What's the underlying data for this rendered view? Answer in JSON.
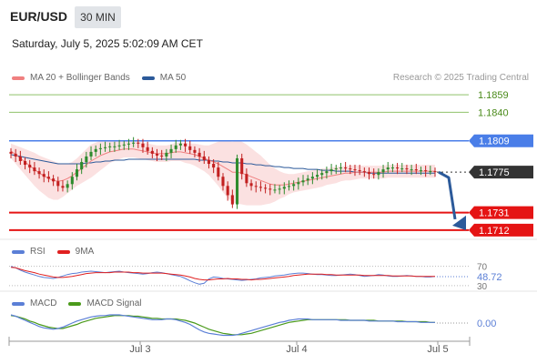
{
  "header": {
    "pair": "EUR/USD",
    "timeframe": "30 MIN",
    "datetime": "Saturday, July 5, 2025 5:02:09 AM CET"
  },
  "main_legend": [
    {
      "label": "MA 20 + Bollinger Bands",
      "color": "#f08080"
    },
    {
      "label": "MA 50",
      "color": "#2c5a9a"
    }
  ],
  "watermark": "Research © 2025 Trading Central",
  "rsi_legend": [
    {
      "label": "RSI",
      "color": "#5b7fd6"
    },
    {
      "label": "9MA",
      "color": "#e02020"
    }
  ],
  "macd_legend": [
    {
      "label": "MACD",
      "color": "#5b7fd6"
    },
    {
      "label": "MACD Signal",
      "color": "#4a9a1a"
    }
  ],
  "colors": {
    "resistance_green": "#8fc26a",
    "pivot_blue": "#4a7ee8",
    "support_red": "#e51414",
    "current_price": "#333333",
    "forecast_arrow": "#2c5a9a",
    "bollinger_fill": "#fbdede",
    "candle_up": "#2e8b2e",
    "candle_down": "#c22020"
  },
  "chart_data": [
    {
      "type": "line",
      "panel": "price",
      "title": "EUR/USD 30 MIN",
      "x_tick_labels": [
        "Jul 3",
        "Jul 4",
        "Jul 5"
      ],
      "ylim": [
        1.1705,
        1.187
      ],
      "levels": [
        {
          "kind": "resistance",
          "value": 1.1859,
          "label": "1.1859"
        },
        {
          "kind": "resistance",
          "value": 1.184,
          "label": "1.1840"
        },
        {
          "kind": "pivot",
          "value": 1.1809,
          "label": "1.1809"
        },
        {
          "kind": "current",
          "value": 1.1775,
          "label": "1.1775"
        },
        {
          "kind": "support",
          "value": 1.1731,
          "label": "1.1731"
        },
        {
          "kind": "support",
          "value": 1.1712,
          "label": "1.1712"
        }
      ],
      "close": [
        1.1795,
        1.1792,
        1.1787,
        1.1783,
        1.178,
        1.1776,
        1.1773,
        1.177,
        1.1768,
        1.1765,
        1.176,
        1.1758,
        1.1762,
        1.177,
        1.1778,
        1.1786,
        1.1792,
        1.1797,
        1.18,
        1.1801,
        1.1802,
        1.1803,
        1.1803,
        1.1804,
        1.1805,
        1.1806,
        1.1807,
        1.1806,
        1.1802,
        1.1798,
        1.1795,
        1.1793,
        1.1792,
        1.1796,
        1.18,
        1.1804,
        1.1806,
        1.1803,
        1.1799,
        1.1796,
        1.1792,
        1.1788,
        1.1784,
        1.178,
        1.177,
        1.176,
        1.175,
        1.174,
        1.179,
        1.1773,
        1.1763,
        1.176,
        1.1759,
        1.1758,
        1.1757,
        1.1756,
        1.1756,
        1.1757,
        1.1759,
        1.176,
        1.1762,
        1.1764,
        1.1766,
        1.1768,
        1.177,
        1.1772,
        1.1774,
        1.1776,
        1.1778,
        1.1779,
        1.178,
        1.1779,
        1.1778,
        1.1777,
        1.1776,
        1.1775,
        1.1773,
        1.1772,
        1.1775,
        1.1778,
        1.178,
        1.178,
        1.1779,
        1.1779,
        1.1778,
        1.1778,
        1.1777,
        1.1777,
        1.1776,
        1.1776,
        1.1775
      ],
      "ma20": [
        1.1798,
        1.1794,
        1.179,
        1.1786,
        1.1782,
        1.1778,
        1.1774,
        1.1771,
        1.1768,
        1.1766,
        1.1765,
        1.1766,
        1.1768,
        1.1771,
        1.1775,
        1.1779,
        1.1783,
        1.1787,
        1.179,
        1.1793,
        1.1795,
        1.1797,
        1.1798,
        1.1799,
        1.18,
        1.18,
        1.18,
        1.1799,
        1.1798,
        1.1797,
        1.1796,
        1.1795,
        1.1795,
        1.1795,
        1.1796,
        1.1797,
        1.1797,
        1.1796,
        1.1795,
        1.1794,
        1.1792,
        1.179,
        1.1788,
        1.1786,
        1.1784,
        1.1781,
        1.1778,
        1.1775,
        1.1775,
        1.1774,
        1.1772,
        1.177,
        1.1768,
        1.1766,
        1.1764,
        1.1762,
        1.1761,
        1.1761,
        1.1761,
        1.1762,
        1.1763,
        1.1764,
        1.1765,
        1.1766,
        1.1767,
        1.1768,
        1.1769,
        1.177,
        1.1771,
        1.1772,
        1.1773,
        1.1774,
        1.1774,
        1.1775,
        1.1775,
        1.1775,
        1.1775,
        1.1775,
        1.1775,
        1.1775,
        1.1776,
        1.1776,
        1.1776,
        1.1776,
        1.1776,
        1.1776,
        1.1776,
        1.1776,
        1.1776,
        1.1776,
        1.1776
      ],
      "ma50": [
        1.1794,
        1.1793,
        1.1792,
        1.1791,
        1.179,
        1.1789,
        1.1788,
        1.1787,
        1.1786,
        1.1785,
        1.1784,
        1.1784,
        1.1784,
        1.1784,
        1.1784,
        1.1784,
        1.1785,
        1.1785,
        1.1786,
        1.1786,
        1.1787,
        1.1787,
        1.1788,
        1.1788,
        1.1788,
        1.1789,
        1.1789,
        1.1789,
        1.1789,
        1.1789,
        1.1789,
        1.1789,
        1.1789,
        1.1789,
        1.1789,
        1.1789,
        1.1789,
        1.1789,
        1.1789,
        1.1789,
        1.1788,
        1.1788,
        1.1788,
        1.1787,
        1.1787,
        1.1786,
        1.1786,
        1.1785,
        1.1785,
        1.1785,
        1.1784,
        1.1784,
        1.1783,
        1.1783,
        1.1782,
        1.1782,
        1.1781,
        1.1781,
        1.178,
        1.178,
        1.1779,
        1.1779,
        1.1779,
        1.1778,
        1.1778,
        1.1778,
        1.1777,
        1.1777,
        1.1777,
        1.1776,
        1.1776,
        1.1776,
        1.1776,
        1.1775,
        1.1775,
        1.1775,
        1.1774,
        1.1774,
        1.1774,
        1.1774,
        1.1774,
        1.1774,
        1.1774,
        1.1774,
        1.1774,
        1.1774,
        1.1774,
        1.1774,
        1.1774,
        1.1774,
        1.1774
      ],
      "bollinger_width": [
        0.0008,
        0.001,
        0.0012,
        0.0014,
        0.0016,
        0.0018,
        0.0019,
        0.002,
        0.0021,
        0.0021,
        0.002,
        0.0018,
        0.0016,
        0.0015,
        0.0015,
        0.0016,
        0.0017,
        0.0018,
        0.0017,
        0.0016,
        0.0014,
        0.0012,
        0.0011,
        0.001,
        0.0009,
        0.0009,
        0.0009,
        0.0009,
        0.0009,
        0.0009,
        0.0009,
        0.0009,
        0.0009,
        0.0009,
        0.0009,
        0.001,
        0.001,
        0.0011,
        0.0011,
        0.0012,
        0.0013,
        0.0014,
        0.0016,
        0.002,
        0.0024,
        0.0028,
        0.0031,
        0.0033,
        0.0034,
        0.0034,
        0.0033,
        0.0031,
        0.0029,
        0.0027,
        0.0024,
        0.0021,
        0.0018,
        0.0015,
        0.0013,
        0.0011,
        0.001,
        0.001,
        0.001,
        0.001,
        0.001,
        0.001,
        0.001,
        0.0009,
        0.0009,
        0.0009,
        0.0008,
        0.0008,
        0.0008,
        0.0008,
        0.0007,
        0.0007,
        0.0007,
        0.0007,
        0.0007,
        0.0007,
        0.0007,
        0.0007,
        0.0007,
        0.0007,
        0.0007,
        0.0007,
        0.0007,
        0.0007,
        0.0007,
        0.0007,
        0.0007
      ],
      "forecast": {
        "from": 1.1775,
        "to": 1.1712
      }
    },
    {
      "type": "line",
      "panel": "rsi",
      "ylim": [
        28,
        75
      ],
      "ticks": [
        {
          "value": 70,
          "label": "70"
        },
        {
          "value": 30,
          "label": "30"
        }
      ],
      "current": {
        "value": 48.72,
        "label": "48.72"
      },
      "rsi": [
        70,
        67,
        62,
        58,
        55,
        52,
        49,
        47,
        46,
        45,
        47,
        50,
        53,
        55,
        56,
        58,
        59,
        60,
        59,
        58,
        57,
        58,
        59,
        60,
        58,
        57,
        56,
        55,
        54,
        55,
        57,
        58,
        57,
        55,
        53,
        51,
        49,
        45,
        40,
        36,
        33,
        35,
        44,
        48,
        47,
        45,
        44,
        43,
        42,
        41,
        42,
        43,
        44,
        46,
        47,
        48,
        50,
        51,
        52,
        54,
        55,
        56,
        56,
        55,
        54,
        53,
        53,
        52,
        51,
        51,
        52,
        53,
        54,
        53,
        51,
        49,
        50,
        51,
        53,
        52,
        50,
        49,
        49,
        50,
        51,
        50,
        49,
        49,
        48,
        48,
        49
      ],
      "ma9": [
        68,
        67,
        64,
        61,
        59,
        57,
        54,
        52,
        50,
        48,
        47,
        47,
        48,
        49,
        51,
        53,
        55,
        56,
        57,
        57,
        57,
        57,
        58,
        58,
        58,
        58,
        57,
        57,
        56,
        56,
        56,
        56,
        56,
        55,
        54,
        53,
        52,
        50,
        48,
        45,
        43,
        42,
        42,
        43,
        44,
        44,
        45,
        44,
        44,
        43,
        43,
        42,
        43,
        43,
        44,
        45,
        46,
        47,
        48,
        49,
        51,
        52,
        53,
        54,
        54,
        54,
        54,
        53,
        53,
        52,
        52,
        52,
        52,
        52,
        52,
        51,
        51,
        51,
        51,
        51,
        51,
        50,
        50,
        50,
        50,
        50,
        49,
        49,
        49,
        49,
        49
      ]
    },
    {
      "type": "line",
      "panel": "macd",
      "ylim": [
        -0.002,
        0.0016
      ],
      "zero": {
        "value": 0.0,
        "label": "0.00"
      },
      "macd": [
        0.0012,
        0.001,
        0.0007,
        0.0004,
        0.0001,
        -0.0002,
        -0.0005,
        -0.0007,
        -0.0008,
        -0.0009,
        -0.0008,
        -0.0006,
        -0.0003,
        0.0,
        0.0003,
        0.0005,
        0.0007,
        0.0009,
        0.001,
        0.0011,
        0.0011,
        0.0012,
        0.0012,
        0.0012,
        0.0011,
        0.001,
        0.0009,
        0.0008,
        0.0007,
        0.0006,
        0.0005,
        0.0005,
        0.0005,
        0.0006,
        0.0006,
        0.0005,
        0.0003,
        0.0001,
        -0.0002,
        -0.0006,
        -0.001,
        -0.0013,
        -0.0015,
        -0.0016,
        -0.0017,
        -0.0018,
        -0.0018,
        -0.0018,
        -0.0017,
        -0.0015,
        -0.0013,
        -0.0011,
        -0.0009,
        -0.0007,
        -0.0005,
        -0.0003,
        -0.0001,
        0.0001,
        0.0002,
        0.0004,
        0.0005,
        0.0006,
        0.0006,
        0.0006,
        0.0005,
        0.0005,
        0.0005,
        0.0005,
        0.0005,
        0.0005,
        0.0004,
        0.0004,
        0.0004,
        0.0004,
        0.0004,
        0.0004,
        0.0003,
        0.0003,
        0.0003,
        0.0003,
        0.0003,
        0.0003,
        0.0002,
        0.0002,
        0.0002,
        0.0002,
        0.0002,
        0.0001,
        0.0001,
        0.0001,
        0.0001
      ],
      "signal": [
        0.0011,
        0.001,
        0.0008,
        0.0006,
        0.0003,
        0.0001,
        -0.0002,
        -0.0004,
        -0.0006,
        -0.0007,
        -0.0008,
        -0.0008,
        -0.0006,
        -0.0004,
        -0.0002,
        0.0001,
        0.0003,
        0.0005,
        0.0007,
        0.0008,
        0.0009,
        0.001,
        0.0011,
        0.0011,
        0.0011,
        0.0011,
        0.001,
        0.001,
        0.0009,
        0.0008,
        0.0007,
        0.0007,
        0.0006,
        0.0006,
        0.0006,
        0.0006,
        0.0005,
        0.0004,
        0.0002,
        0.0,
        -0.0003,
        -0.0006,
        -0.0009,
        -0.0011,
        -0.0013,
        -0.0015,
        -0.0016,
        -0.0017,
        -0.0017,
        -0.0017,
        -0.0016,
        -0.0015,
        -0.0013,
        -0.0011,
        -0.0009,
        -0.0007,
        -0.0005,
        -0.0003,
        -0.0001,
        0.0001,
        0.0002,
        0.0003,
        0.0004,
        0.0005,
        0.0005,
        0.0005,
        0.0005,
        0.0005,
        0.0005,
        0.0005,
        0.0005,
        0.0005,
        0.0004,
        0.0004,
        0.0004,
        0.0004,
        0.0004,
        0.0004,
        0.0003,
        0.0003,
        0.0003,
        0.0003,
        0.0003,
        0.0003,
        0.0002,
        0.0002,
        0.0002,
        0.0002,
        0.0002,
        0.0001,
        0.0001
      ]
    }
  ]
}
